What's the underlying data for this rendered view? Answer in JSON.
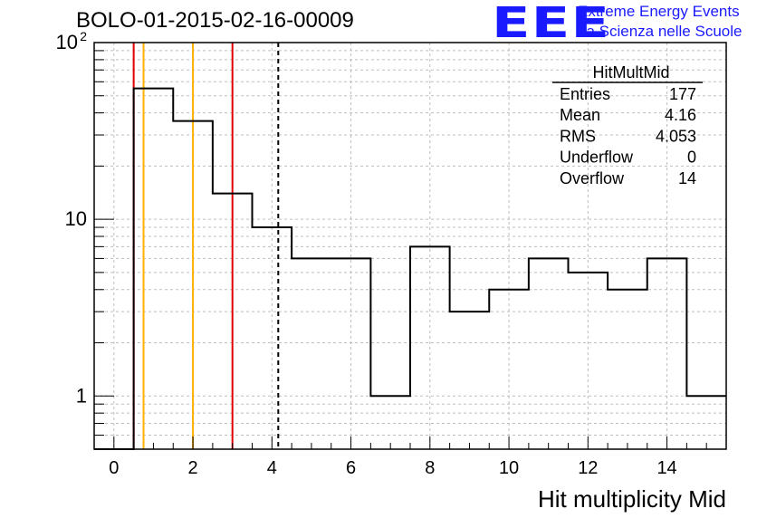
{
  "header": {
    "run_title": "BOLO-01-2015-02-16-00009",
    "logo_text": "EEE",
    "logo_line1": "Extreme Energy Events",
    "logo_line2": "La Scienza nelle Scuole"
  },
  "stats": {
    "name": "HitMultMid",
    "rows": [
      {
        "label": "Entries",
        "value": "177"
      },
      {
        "label": "Mean",
        "value": "4.16"
      },
      {
        "label": "RMS",
        "value": "4.053"
      },
      {
        "label": "Underflow",
        "value": "0"
      },
      {
        "label": "Overflow",
        "value": "14"
      }
    ]
  },
  "chart_data": {
    "type": "histogram",
    "title": "",
    "xlabel": "Hit multiplicity Mid",
    "ylabel": "",
    "xlim": [
      -0.5,
      15.5
    ],
    "ylim": [
      0.5,
      100
    ],
    "y_scale": "log",
    "grid": true,
    "x_ticks": [
      0,
      2,
      4,
      6,
      8,
      10,
      12,
      14
    ],
    "y_ticks": [
      {
        "value": 1,
        "label": "1"
      },
      {
        "value": 10,
        "label": "10"
      },
      {
        "value": 100,
        "label": "10",
        "exponent": "2"
      }
    ],
    "bins": [
      {
        "lo": -0.5,
        "hi": 0.5,
        "count": 0
      },
      {
        "lo": 0.5,
        "hi": 1.5,
        "count": 55
      },
      {
        "lo": 1.5,
        "hi": 2.5,
        "count": 36
      },
      {
        "lo": 2.5,
        "hi": 3.5,
        "count": 14
      },
      {
        "lo": 3.5,
        "hi": 4.5,
        "count": 9
      },
      {
        "lo": 4.5,
        "hi": 5.5,
        "count": 6
      },
      {
        "lo": 5.5,
        "hi": 6.5,
        "count": 6
      },
      {
        "lo": 6.5,
        "hi": 7.5,
        "count": 1
      },
      {
        "lo": 7.5,
        "hi": 8.5,
        "count": 7
      },
      {
        "lo": 8.5,
        "hi": 9.5,
        "count": 3
      },
      {
        "lo": 9.5,
        "hi": 10.5,
        "count": 4
      },
      {
        "lo": 10.5,
        "hi": 11.5,
        "count": 6
      },
      {
        "lo": 11.5,
        "hi": 12.5,
        "count": 5
      },
      {
        "lo": 12.5,
        "hi": 13.5,
        "count": 4
      },
      {
        "lo": 13.5,
        "hi": 14.5,
        "count": 6
      },
      {
        "lo": 14.5,
        "hi": 15.5,
        "count": 1
      }
    ],
    "markers": [
      {
        "x": 0.5,
        "color": "#e00000",
        "style": "solid"
      },
      {
        "x": 0.75,
        "color": "#ffb000",
        "style": "solid"
      },
      {
        "x": 2.0,
        "color": "#ffb000",
        "style": "solid"
      },
      {
        "x": 3.0,
        "color": "#e00000",
        "style": "solid"
      },
      {
        "x": 4.16,
        "color": "#000000",
        "style": "dashed"
      }
    ],
    "colors": {
      "histogram": "#000000",
      "grid": "#bdbdbd",
      "logo": "#1a1aff"
    }
  }
}
